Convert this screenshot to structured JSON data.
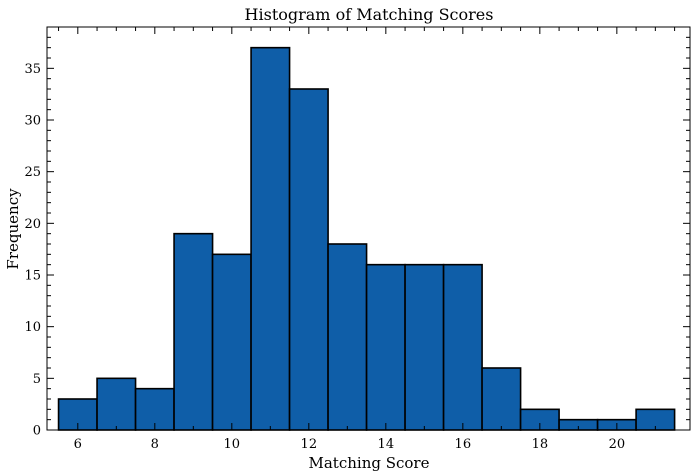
{
  "chart_data": {
    "type": "bar",
    "title": "Histogram of Matching Scores",
    "xlabel": "Matching Score",
    "ylabel": "Frequency",
    "bar_color": "#0f5ea8",
    "edge_color": "#000000",
    "xlim": [
      5.2,
      21.9
    ],
    "ylim": [
      0,
      39
    ],
    "x_ticks": [
      6,
      8,
      10,
      12,
      14,
      16,
      18,
      20
    ],
    "x_tick_labels": [
      "6",
      "8",
      "10",
      "12",
      "14",
      "16",
      "18",
      "20"
    ],
    "y_ticks": [
      0,
      5,
      10,
      15,
      20,
      25,
      30,
      35
    ],
    "y_tick_labels": [
      "0",
      "5",
      "10",
      "15",
      "20",
      "25",
      "30",
      "35"
    ],
    "bins": [
      {
        "x0": 5.5,
        "x1": 6.5,
        "count": 3
      },
      {
        "x0": 6.5,
        "x1": 7.5,
        "count": 5
      },
      {
        "x0": 7.5,
        "x1": 8.5,
        "count": 4
      },
      {
        "x0": 8.5,
        "x1": 9.5,
        "count": 19
      },
      {
        "x0": 9.5,
        "x1": 10.5,
        "count": 17
      },
      {
        "x0": 10.5,
        "x1": 11.5,
        "count": 37
      },
      {
        "x0": 11.5,
        "x1": 12.5,
        "count": 33
      },
      {
        "x0": 12.5,
        "x1": 13.5,
        "count": 18
      },
      {
        "x0": 13.5,
        "x1": 14.5,
        "count": 16
      },
      {
        "x0": 14.5,
        "x1": 15.5,
        "count": 16
      },
      {
        "x0": 15.5,
        "x1": 16.5,
        "count": 16
      },
      {
        "x0": 16.5,
        "x1": 17.5,
        "count": 6
      },
      {
        "x0": 17.5,
        "x1": 18.5,
        "count": 2
      },
      {
        "x0": 18.5,
        "x1": 19.5,
        "count": 1
      },
      {
        "x0": 19.5,
        "x1": 20.5,
        "count": 1
      },
      {
        "x0": 20.5,
        "x1": 21.5,
        "count": 2
      }
    ],
    "grid": false,
    "legend": "none"
  }
}
